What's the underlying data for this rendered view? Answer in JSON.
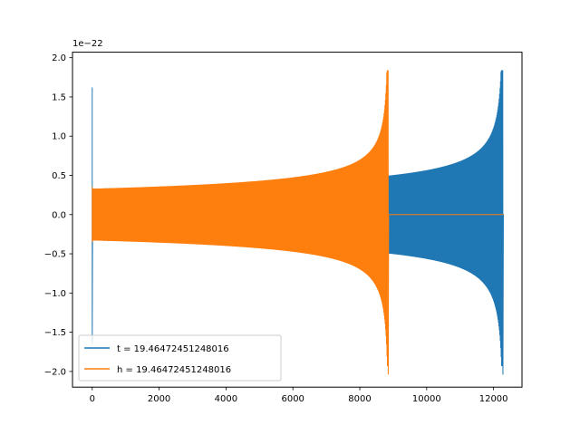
{
  "chart_data": {
    "type": "line",
    "title": "",
    "xlabel": "",
    "ylabel": "",
    "y_offset_label": "1e−22",
    "xlim": [
      -590,
      12850
    ],
    "ylim": [
      -2.2,
      2.07
    ],
    "x_ticks": [
      0,
      2000,
      4000,
      6000,
      8000,
      10000,
      12000
    ],
    "x_tick_labels": [
      "0",
      "2000",
      "4000",
      "6000",
      "8000",
      "10000",
      "12000"
    ],
    "y_ticks": [
      -2.0,
      -1.5,
      -1.0,
      -0.5,
      0.0,
      0.5,
      1.0,
      1.5,
      2.0
    ],
    "y_tick_labels": [
      "−2.0",
      "−1.5",
      "−1.0",
      "−0.5",
      "0.0",
      "0.5",
      "1.0",
      "1.5",
      "2.0"
    ],
    "grid": false,
    "legend_position": "lower-left",
    "series": [
      {
        "name": "t = 19.46472451248016",
        "color": "#1f77b4",
        "description": "chirp waveform: amplitude ~0.33 at start rising to ~1.84/-2.04 at merger near x=12280, flat 0 after",
        "x_start": 0,
        "x_merger": 12280,
        "x_end": 12290,
        "envelope_start": 0.33,
        "peak_max": 1.84,
        "peak_min": -2.04,
        "initial_spike": [
          1.62,
          -1.65
        ]
      },
      {
        "name": "h = 19.46472451248016",
        "color": "#ff7f0e",
        "description": "chirp waveform: amplitude ~0.33 at start rising to ~1.84/-2.04 at merger near x=8850, then 0 until x=12290",
        "x_start": 0,
        "x_merger": 8850,
        "x_end": 12290,
        "envelope_start": 0.33,
        "peak_max": 1.84,
        "peak_min": -2.04,
        "initial_spike": [
          0.35,
          -0.35
        ]
      }
    ]
  }
}
